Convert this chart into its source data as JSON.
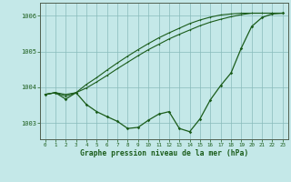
{
  "xlabel": "Graphe pression niveau de la mer (hPa)",
  "background_color": "#c4e8e8",
  "grid_color": "#88bbbb",
  "line_color": "#1a5c1a",
  "spine_color": "#506050",
  "ylim": [
    1002.55,
    1006.35
  ],
  "yticks": [
    1003,
    1004,
    1005,
    1006
  ],
  "xlim": [
    -0.5,
    23.5
  ],
  "xticks": [
    0,
    1,
    2,
    3,
    4,
    5,
    6,
    7,
    8,
    9,
    10,
    11,
    12,
    13,
    14,
    15,
    16,
    17,
    18,
    19,
    20,
    21,
    22,
    23
  ],
  "hours": [
    0,
    1,
    2,
    3,
    4,
    5,
    6,
    7,
    8,
    9,
    10,
    11,
    12,
    13,
    14,
    15,
    16,
    17,
    18,
    19,
    20,
    21,
    22,
    23
  ],
  "pressure_main": [
    1003.8,
    1003.85,
    1003.67,
    1003.85,
    1003.52,
    1003.32,
    1003.18,
    1003.05,
    1002.85,
    1002.88,
    1003.08,
    1003.25,
    1003.32,
    1002.85,
    1002.76,
    1003.12,
    1003.65,
    1004.05,
    1004.4,
    1005.1,
    1005.7,
    1005.95,
    1006.05,
    1006.07
  ],
  "pressure_line2": [
    1003.8,
    1003.85,
    1003.8,
    1003.85,
    1004.08,
    1004.27,
    1004.48,
    1004.68,
    1004.87,
    1005.05,
    1005.22,
    1005.38,
    1005.52,
    1005.65,
    1005.78,
    1005.88,
    1005.96,
    1006.02,
    1006.05,
    1006.07,
    1006.07,
    1006.07,
    1006.07,
    1006.07
  ],
  "pressure_line3": [
    1003.8,
    1003.85,
    1003.75,
    1003.85,
    1003.98,
    1004.15,
    1004.33,
    1004.52,
    1004.7,
    1004.88,
    1005.05,
    1005.2,
    1005.35,
    1005.48,
    1005.6,
    1005.72,
    1005.82,
    1005.9,
    1005.97,
    1006.03,
    1006.07,
    1006.07,
    1006.07,
    1006.07
  ]
}
